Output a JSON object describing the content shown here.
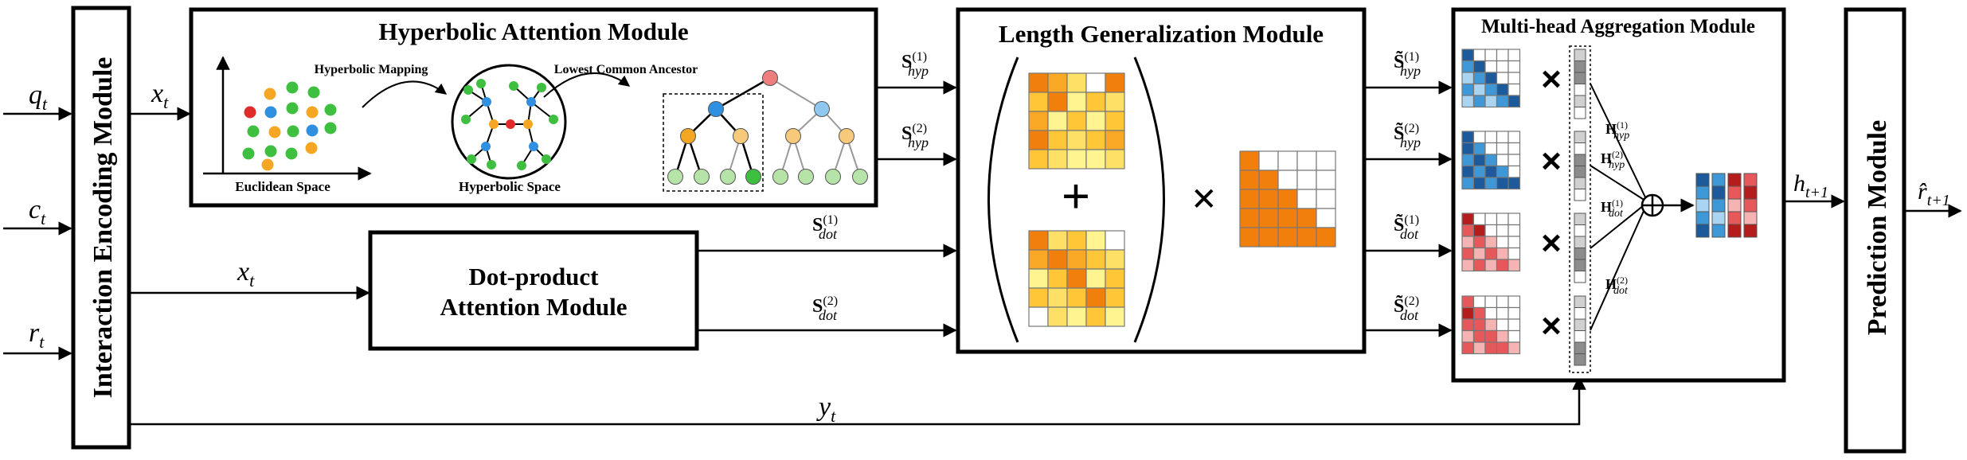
{
  "modules": {
    "interaction_encoding": "Interaction Encoding Module",
    "hyperbolic_attention": "Hyperbolic Attention Module",
    "length_generalization": "Length Generalization Module",
    "multihead_aggregation": "Multi-head Aggregation Module",
    "prediction": "Prediction Module",
    "dot_product_line1": "Dot-product",
    "dot_product_line2": "Attention Module"
  },
  "inputs": {
    "q": "q",
    "q_sub": "t",
    "c": "c",
    "c_sub": "t",
    "r": "r",
    "r_sub": "t"
  },
  "labels": {
    "x": "x",
    "x_sub": "t",
    "y": "y",
    "y_sub": "t",
    "h": "h",
    "h_sub": "t+1",
    "rhat": "r̂",
    "rhat_sub": "t+1",
    "euclidean_space": "Euclidean Space",
    "hyperbolic_space": "Hyperbolic Space",
    "hyperbolic_mapping": "Hyperbolic Mapping",
    "lowest_common_ancestor": "Lowest Common Ancestor",
    "S": "S",
    "S_tilde": "S̃",
    "H": "H",
    "hyp": "hyp",
    "dot": "dot",
    "sup1": "(1)",
    "sup2": "(2)",
    "plus": "+",
    "times": "×",
    "oplus": "⊕"
  },
  "colors": {
    "yellow_light": "#fff48f",
    "yellow": "#ffe066",
    "gold": "#ffc637",
    "amber": "#f9a825",
    "orange": "#f07f0c",
    "blue_light": "#a9d4f2",
    "blue": "#3e97d6",
    "blue_dark": "#1c5a9b",
    "red_light": "#f5b3b3",
    "red": "#e7585a",
    "red_dark": "#b51d1d",
    "gray": "#8c8c8c",
    "gray_light": "#d0d0d0",
    "node_green": "#3fbf3f",
    "node_orange": "#f5a623",
    "node_blue": "#2f8fe0",
    "node_red": "#e02b2b",
    "node_pink": "#ef7d7d",
    "node_lightblue": "#8ec8f0",
    "node_lightorange": "#f7c97a",
    "node_lightgreen": "#b6e3a8"
  }
}
